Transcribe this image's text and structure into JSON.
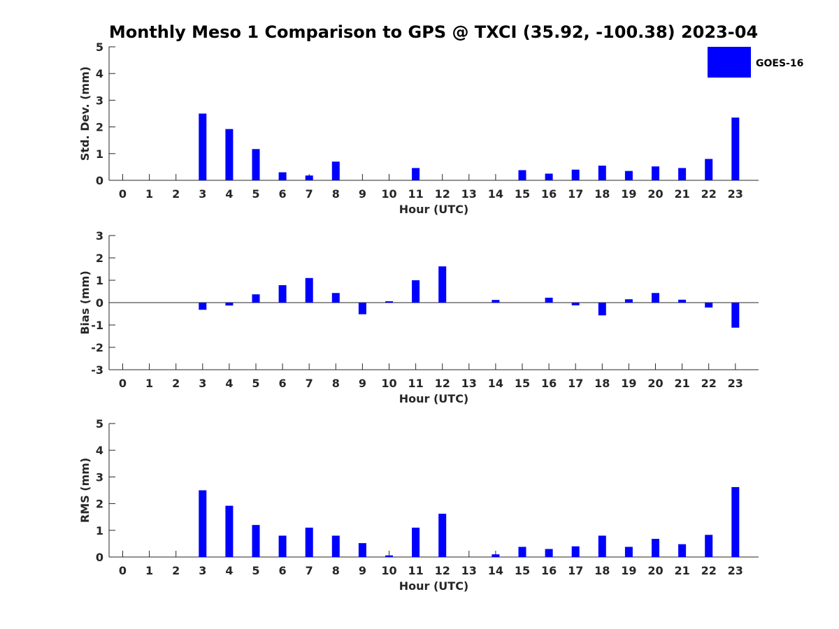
{
  "figure_title": "Monthly Meso 1 Comparison to GPS @ TXCI (35.92, -100.38) 2023-04",
  "legend": {
    "label": "GOES-16",
    "color": "#0000ff"
  },
  "chart_data": [
    {
      "type": "bar",
      "xlabel": "Hour (UTC)",
      "ylabel": "Std. Dev. (mm)",
      "ylim": [
        0,
        5
      ],
      "yticks": [
        "0",
        "1",
        "2",
        "3",
        "4",
        "5"
      ],
      "categories": [
        "0",
        "1",
        "2",
        "3",
        "4",
        "5",
        "6",
        "7",
        "8",
        "9",
        "10",
        "11",
        "12",
        "13",
        "14",
        "15",
        "16",
        "17",
        "18",
        "19",
        "20",
        "21",
        "22",
        "23"
      ],
      "series": [
        {
          "name": "GOES-16",
          "values": [
            0,
            0,
            0,
            2.5,
            1.92,
            1.17,
            0.3,
            0.18,
            0.7,
            0,
            0,
            0.46,
            0,
            0,
            0,
            0.38,
            0.25,
            0.4,
            0.55,
            0.35,
            0.52,
            0.46,
            0.8,
            2.35
          ]
        }
      ]
    },
    {
      "type": "bar",
      "xlabel": "Hour (UTC)",
      "ylabel": "Bias (mm)",
      "ylim": [
        -3,
        3
      ],
      "yticks": [
        "-3",
        "-2",
        "-1",
        "0",
        "1",
        "2",
        "3"
      ],
      "categories": [
        "0",
        "1",
        "2",
        "3",
        "4",
        "5",
        "6",
        "7",
        "8",
        "9",
        "10",
        "11",
        "12",
        "13",
        "14",
        "15",
        "16",
        "17",
        "18",
        "19",
        "20",
        "21",
        "22",
        "23"
      ],
      "series": [
        {
          "name": "GOES-16",
          "values": [
            0,
            0,
            0,
            -0.32,
            -0.13,
            0.37,
            0.78,
            1.1,
            0.43,
            -0.52,
            0.06,
            1.0,
            1.62,
            0,
            0.12,
            0,
            0.22,
            -0.12,
            -0.57,
            0.15,
            0.43,
            0.13,
            -0.22,
            -1.12
          ]
        }
      ]
    },
    {
      "type": "bar",
      "xlabel": "Hour (UTC)",
      "ylabel": "RMS (mm)",
      "ylim": [
        0,
        5
      ],
      "yticks": [
        "0",
        "1",
        "2",
        "3",
        "4",
        "5"
      ],
      "categories": [
        "0",
        "1",
        "2",
        "3",
        "4",
        "5",
        "6",
        "7",
        "8",
        "9",
        "10",
        "11",
        "12",
        "13",
        "14",
        "15",
        "16",
        "17",
        "18",
        "19",
        "20",
        "21",
        "22",
        "23"
      ],
      "series": [
        {
          "name": "GOES-16",
          "values": [
            0,
            0,
            0,
            2.5,
            1.92,
            1.2,
            0.8,
            1.1,
            0.8,
            0.52,
            0.06,
            1.1,
            1.62,
            0,
            0.1,
            0.38,
            0.3,
            0.4,
            0.8,
            0.38,
            0.68,
            0.48,
            0.83,
            2.62
          ]
        }
      ]
    }
  ]
}
